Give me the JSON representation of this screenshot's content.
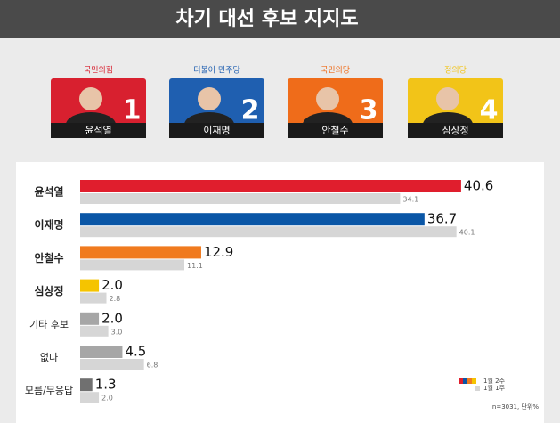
{
  "title": "차기 대선 후보 지지도",
  "candidates": [
    {
      "party": "국민의힘",
      "name": "윤석열",
      "number": 1,
      "color": "#d8202f"
    },
    {
      "party": "더불어 민주당",
      "name": "이재명",
      "number": 2,
      "color": "#1f5fb0"
    },
    {
      "party": "국민의당",
      "name": "안철수",
      "number": 3,
      "color": "#ef6c1a"
    },
    {
      "party": "정의당",
      "name": "심상정",
      "number": 4,
      "color": "#f2c418"
    }
  ],
  "chart_data": {
    "type": "bar",
    "orientation": "horizontal",
    "categories": [
      "윤석열",
      "이재명",
      "안철수",
      "심상정",
      "기타 후보",
      "없다",
      "모름/무응답"
    ],
    "series": [
      {
        "name": "1월 2주",
        "colors": [
          "#e01e2d",
          "#0a56a6",
          "#f07a1e",
          "#f5c400",
          "#a6a6a6",
          "#a6a6a6",
          "#707070"
        ],
        "values": [
          40.6,
          36.7,
          12.9,
          2.0,
          2.0,
          4.5,
          1.3
        ],
        "value_labels": [
          "40.6",
          "36.7",
          "12.9",
          "2.0",
          "2.0",
          "4.5",
          "1.3"
        ]
      },
      {
        "name": "1월 1주",
        "color": "#d6d6d6",
        "values": [
          34.1,
          40.1,
          11.1,
          2.8,
          3.0,
          6.8,
          2.0
        ],
        "value_labels": [
          "34.1",
          "40.1",
          "11.1",
          "2.8",
          "3.0",
          "6.8",
          "2.0"
        ]
      }
    ],
    "note": "n=3031, 단위%"
  }
}
